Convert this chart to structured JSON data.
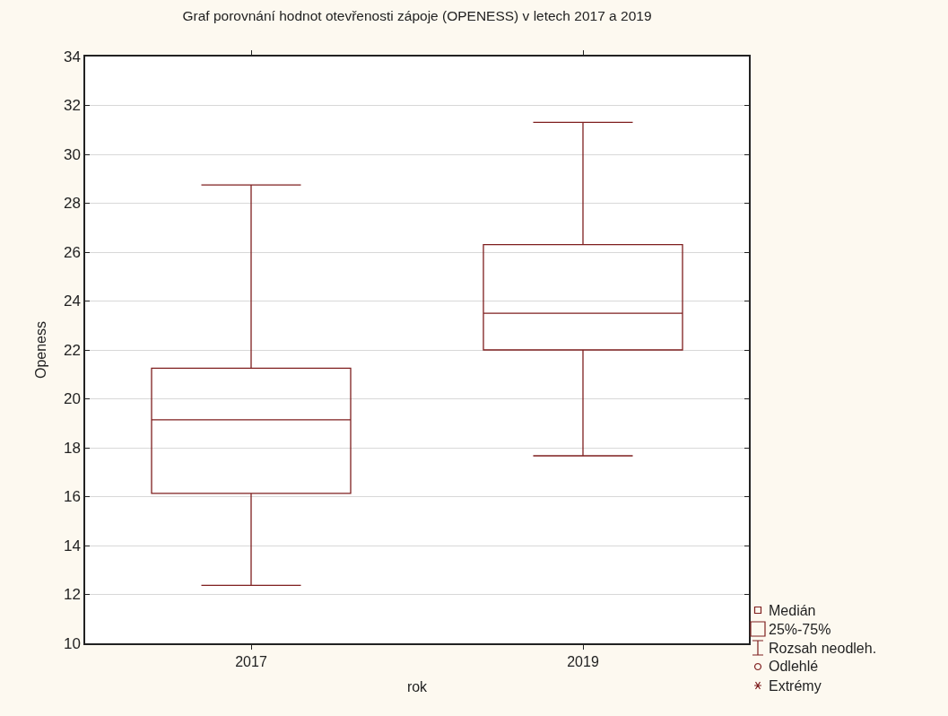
{
  "chart_data": {
    "type": "box",
    "title": "Graf porovnání hodnot otevřenosti zápoje (OPENESS) v letech 2017 a 2019",
    "xlabel": "rok",
    "ylabel": "Openess",
    "categories": [
      "2017",
      "2019"
    ],
    "boxes": [
      {
        "low": 12.37,
        "q1": 16.13,
        "median": 19.14,
        "q3": 21.25,
        "high": 28.75
      },
      {
        "low": 17.67,
        "q1": 22.0,
        "median": 23.5,
        "q3": 26.31,
        "high": 31.31
      }
    ],
    "color": "#7f1f1f",
    "ylim": [
      10,
      34
    ],
    "yticks": [
      10,
      12,
      14,
      16,
      18,
      20,
      22,
      24,
      26,
      28,
      30,
      32,
      34
    ],
    "grid": "y",
    "annotations": [
      "Medián",
      "25%-75%",
      "Rozsah neodleh.",
      "Odlehlé",
      "Extrémy"
    ]
  }
}
